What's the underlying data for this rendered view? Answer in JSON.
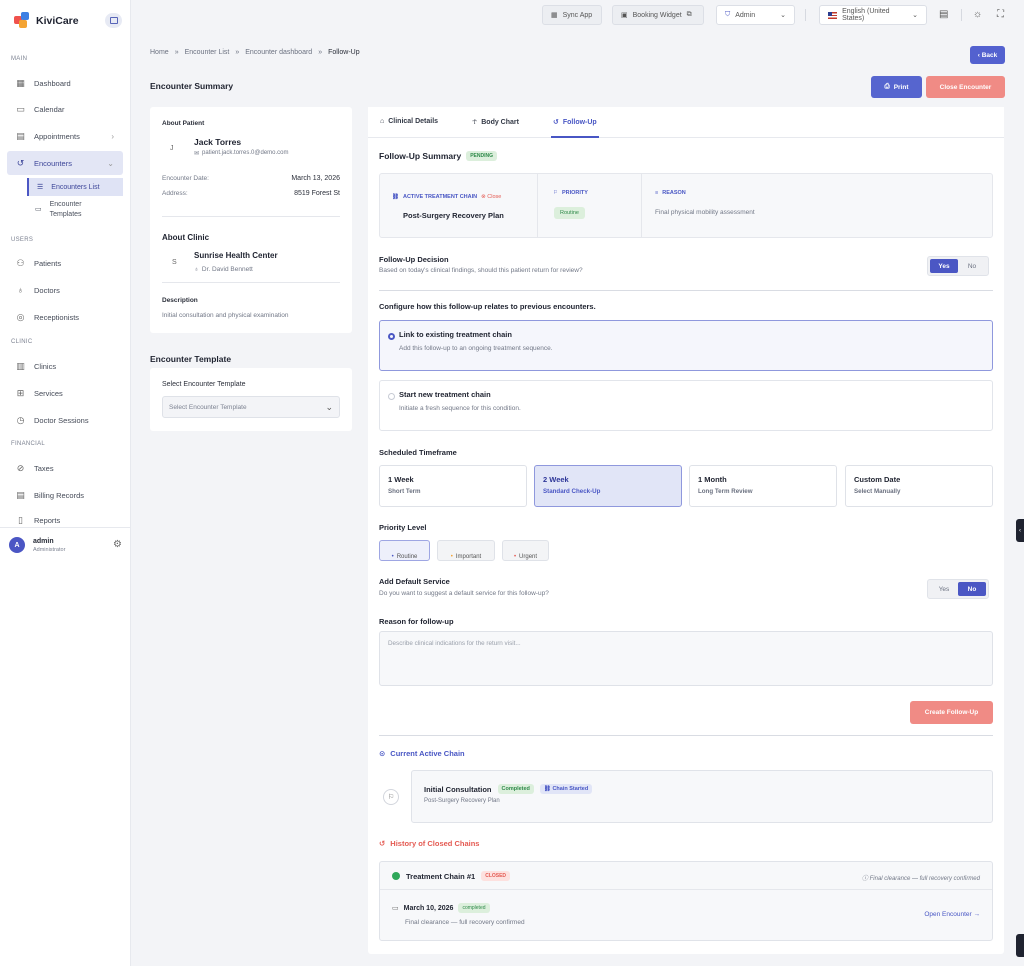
{
  "app": {
    "name": "KiviCare"
  },
  "sidebar": {
    "sections": {
      "main": "MAIN",
      "users": "USERS",
      "clinic": "CLINIC",
      "financial": "FINANCIAL"
    },
    "items": {
      "dashboard": "Dashboard",
      "calendar": "Calendar",
      "appointments": "Appointments",
      "encounters": "Encounters",
      "encounters_list": "Encounters List",
      "encounter_templates": "Encounter Templates",
      "patients": "Patients",
      "doctors": "Doctors",
      "receptionists": "Receptionists",
      "clinics": "Clinics",
      "services": "Services",
      "doctor_sessions": "Doctor Sessions",
      "taxes": "Taxes",
      "billing_records": "Billing Records",
      "reports": "Reports"
    },
    "user": {
      "initial": "A",
      "name": "admin",
      "role": "Administrator"
    }
  },
  "topbar": {
    "sync_app": "Sync App",
    "booking_widget": "Booking Widget",
    "role_select": "Admin",
    "language_select": "English (United States)"
  },
  "breadcrumb": {
    "home": "Home",
    "list": "Encounter List",
    "dashboard": "Encounter dashboard",
    "current": "Follow-Up",
    "sep": "»"
  },
  "header": {
    "back": "Back",
    "title": "Encounter Summary",
    "print": "Print",
    "close_encounter": "Close Encounter"
  },
  "patient": {
    "section": "About Patient",
    "initial": "J",
    "name": "Jack Torres",
    "email": "patient.jack.torres.0@demo.com",
    "date_label": "Encounter Date:",
    "date_value": "March 13, 2026",
    "address_label": "Address:",
    "address_value": "8519 Forest St"
  },
  "clinic": {
    "section": "About Clinic",
    "initial": "S",
    "name": "Sunrise Health Center",
    "doctor": "Dr. David Bennett",
    "description_label": "Description",
    "description": "Initial consultation and physical examination"
  },
  "template": {
    "title": "Encounter Template",
    "label": "Select Encounter Template",
    "placeholder": "Select Encounter Template"
  },
  "tabs": {
    "clinical": "Clinical Details",
    "body_chart": "Body Chart",
    "follow_up": "Follow-Up"
  },
  "followup": {
    "summary_title": "Follow-Up Summary",
    "summary_badge": "PENDING",
    "chain_label": "ACTIVE TREATMENT CHAIN",
    "chain_close": "Close",
    "chain_name": "Post-Surgery Recovery Plan",
    "priority_label": "PRIORITY",
    "priority_value": "Routine",
    "reason_label": "REASON",
    "reason_value": "Final physical mobility assessment",
    "decision_title": "Follow-Up Decision",
    "decision_desc": "Based on today's clinical findings, should this patient return for review?",
    "yes": "Yes",
    "no": "No",
    "configure_title": "Configure how this follow-up relates to previous encounters.",
    "link_title": "Link to existing treatment chain",
    "link_desc": "Add this follow-up to an ongoing treatment sequence.",
    "new_title": "Start new treatment chain",
    "new_desc": "Initiate a fresh sequence for this condition.",
    "timeframe_title": "Scheduled Timeframe",
    "timeframes": [
      {
        "title": "1 Week",
        "sub": "Short Term"
      },
      {
        "title": "2 Week",
        "sub": "Standard Check-Up"
      },
      {
        "title": "1 Month",
        "sub": "Long Term Review"
      },
      {
        "title": "Custom Date",
        "sub": "Select Manually"
      }
    ],
    "priority_title": "Priority Level",
    "priorities": [
      "Routine",
      "Important",
      "Urgent"
    ],
    "service_title": "Add Default Service",
    "service_desc": "Do you want to suggest a default service for this follow-up?",
    "reason_title": "Reason for follow-up",
    "reason_placeholder": "Describe clinical indications for the return visit...",
    "create_btn": "Create Follow-Up"
  },
  "active_chain": {
    "title": "Current Active Chain",
    "item_title": "Initial Consultation",
    "status": "Completed",
    "tag": "Chain Started",
    "plan": "Post-Surgery Recovery Plan"
  },
  "history": {
    "title": "History of Closed Chains",
    "chain_title": "Treatment Chain #1",
    "chain_badge": "CLOSED",
    "chain_note": "Final clearance — full recovery confirmed",
    "entry_date": "March 10, 2026",
    "entry_status": "completed",
    "entry_note": "Final clearance — full recovery confirmed",
    "open_link": "Open Encounter →"
  },
  "colors": {
    "primary": "#5361cf",
    "danger": "#f08b85",
    "success": "#2fa85a"
  }
}
